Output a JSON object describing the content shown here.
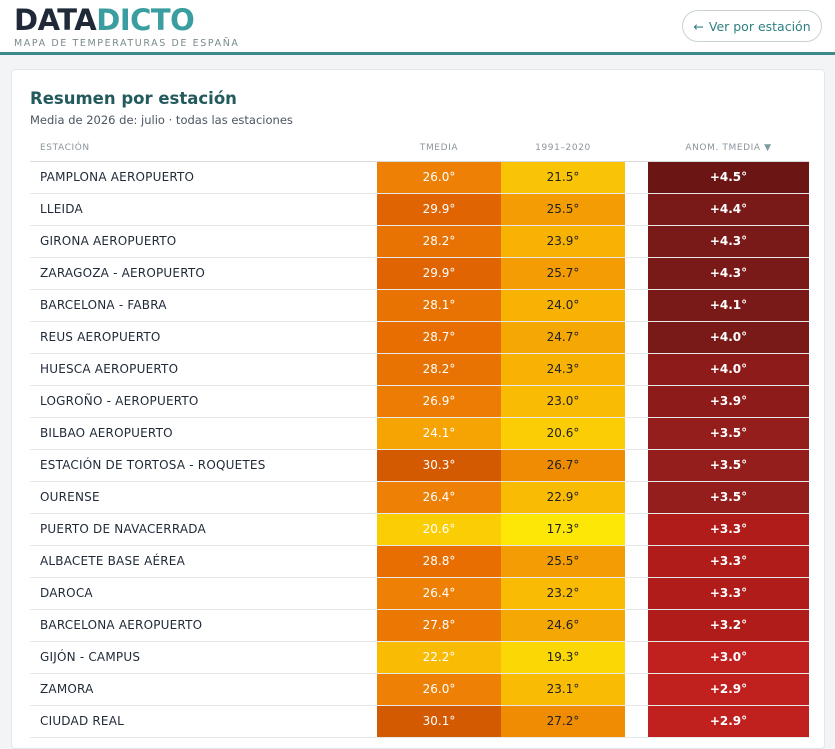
{
  "header": {
    "logo_part1": "DATA",
    "logo_part2": "DICTO",
    "tagline": "MAPA DE TEMPERATURAS DE ESPAÑA",
    "back_button": "Ver por estación"
  },
  "card": {
    "title": "Resumen por estación",
    "subtitle": "Media de 2026 de: julio · todas las estaciones"
  },
  "table": {
    "columns": {
      "station": "ESTACIÓN",
      "tmedia": "TMEDIA",
      "normal": "1991–2020",
      "anomaly": "ANOM. TMEDIA",
      "sort_icon": "▼"
    },
    "rows": [
      {
        "station": "PAMPLONA AEROPUERTO",
        "tmedia": "26.0°",
        "normal": "21.5°",
        "anom": "+4.5°",
        "tmedia_color": "#ee8105",
        "normal_color": "#f9c405",
        "anom_color": "#6b1514"
      },
      {
        "station": "LLEIDA",
        "tmedia": "29.9°",
        "normal": "25.5°",
        "anom": "+4.4°",
        "tmedia_color": "#e06502",
        "normal_color": "#f39c03",
        "anom_color": "#7a1a18"
      },
      {
        "station": "GIRONA AEROPUERTO",
        "tmedia": "28.2°",
        "normal": "23.9°",
        "anom": "+4.3°",
        "tmedia_color": "#e87302",
        "normal_color": "#f7b203",
        "anom_color": "#7a1a18"
      },
      {
        "station": "ZARAGOZA - AEROPUERTO",
        "tmedia": "29.9°",
        "normal": "25.7°",
        "anom": "+4.3°",
        "tmedia_color": "#e06502",
        "normal_color": "#f39c03",
        "anom_color": "#7a1a18"
      },
      {
        "station": "BARCELONA - FABRA",
        "tmedia": "28.1°",
        "normal": "24.0°",
        "anom": "+4.1°",
        "tmedia_color": "#e87302",
        "normal_color": "#f7b203",
        "anom_color": "#7a1a18"
      },
      {
        "station": "REUS AEROPUERTO",
        "tmedia": "28.7°",
        "normal": "24.7°",
        "anom": "+4.0°",
        "tmedia_color": "#e86e02",
        "normal_color": "#f5a803",
        "anom_color": "#7a1a18"
      },
      {
        "station": "HUESCA AEROPUERTO",
        "tmedia": "28.2°",
        "normal": "24.3°",
        "anom": "+4.0°",
        "tmedia_color": "#e87302",
        "normal_color": "#f7b203",
        "anom_color": "#8c1b19"
      },
      {
        "station": "LOGROÑO - AEROPUERTO",
        "tmedia": "26.9°",
        "normal": "23.0°",
        "anom": "+3.9°",
        "tmedia_color": "#ec7c03",
        "normal_color": "#f9bb04",
        "anom_color": "#8c1b19"
      },
      {
        "station": "BILBAO AEROPUERTO",
        "tmedia": "24.1°",
        "normal": "20.6°",
        "anom": "+3.5°",
        "tmedia_color": "#f5a403",
        "normal_color": "#fbcd05",
        "anom_color": "#931e1c"
      },
      {
        "station": "ESTACIÓN DE TORTOSA - ROQUETES",
        "tmedia": "30.3°",
        "normal": "26.7°",
        "anom": "+3.5°",
        "tmedia_color": "#d45a02",
        "normal_color": "#ef8c03",
        "anom_color": "#931e1c"
      },
      {
        "station": "OURENSE",
        "tmedia": "26.4°",
        "normal": "22.9°",
        "anom": "+3.5°",
        "tmedia_color": "#ee8105",
        "normal_color": "#f9bb04",
        "anom_color": "#931e1c"
      },
      {
        "station": "PUERTO DE NAVACERRADA",
        "tmedia": "20.6°",
        "normal": "17.3°",
        "anom": "+3.3°",
        "tmedia_color": "#fbcd05",
        "normal_color": "#fde706",
        "anom_color": "#b01c1a"
      },
      {
        "station": "ALBACETE BASE AÉREA",
        "tmedia": "28.8°",
        "normal": "25.5°",
        "anom": "+3.3°",
        "tmedia_color": "#e86e02",
        "normal_color": "#f39c03",
        "anom_color": "#b01c1a"
      },
      {
        "station": "DAROCA",
        "tmedia": "26.4°",
        "normal": "23.2°",
        "anom": "+3.3°",
        "tmedia_color": "#ee8105",
        "normal_color": "#f9bb04",
        "anom_color": "#b01c1a"
      },
      {
        "station": "BARCELONA AEROPUERTO",
        "tmedia": "27.8°",
        "normal": "24.6°",
        "anom": "+3.2°",
        "tmedia_color": "#ea7802",
        "normal_color": "#f5a803",
        "anom_color": "#b01c1a"
      },
      {
        "station": "GIJÓN - CAMPUS",
        "tmedia": "22.2°",
        "normal": "19.3°",
        "anom": "+3.0°",
        "tmedia_color": "#f9bb04",
        "normal_color": "#fbd705",
        "anom_color": "#c0201e"
      },
      {
        "station": "ZAMORA",
        "tmedia": "26.0°",
        "normal": "23.1°",
        "anom": "+2.9°",
        "tmedia_color": "#ee8105",
        "normal_color": "#f9bb04",
        "anom_color": "#c0201e"
      },
      {
        "station": "CIUDAD REAL",
        "tmedia": "30.1°",
        "normal": "27.2°",
        "anom": "+2.9°",
        "tmedia_color": "#d45a02",
        "normal_color": "#ef8c03",
        "anom_color": "#c0201e"
      }
    ]
  }
}
